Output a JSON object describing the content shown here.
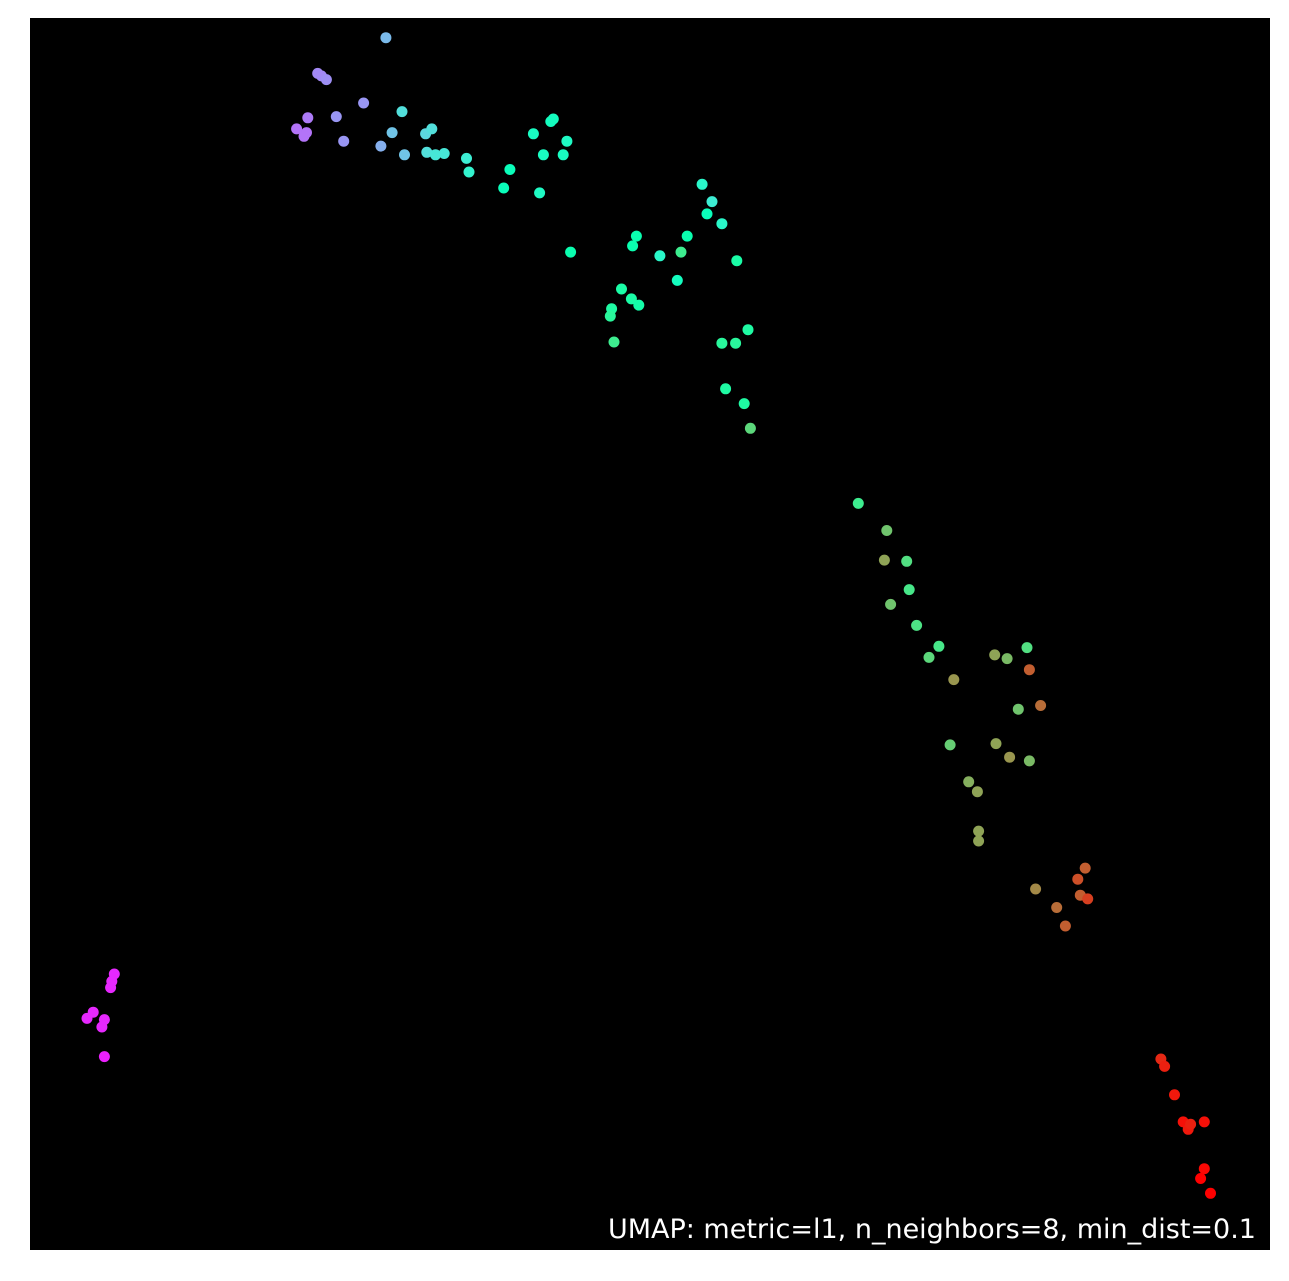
{
  "chart_data": {
    "type": "scatter",
    "title": "",
    "xlabel": "",
    "ylabel": "",
    "grid": false,
    "legend": "none",
    "annotation": "UMAP: metric=l1, n_neighbors=8, min_dist=0.1",
    "xlim": [
      0,
      100
    ],
    "ylim": [
      0,
      100
    ],
    "background_color": "#000000",
    "frame_color": "#000000",
    "text_color": "#ffffff",
    "colormap": "rainbow",
    "points": [
      {
        "x": 23.2,
        "y": 95.5,
        "c": 0.18
      },
      {
        "x": 23.5,
        "y": 95.3,
        "c": 0.18
      },
      {
        "x": 23.9,
        "y": 95.0,
        "c": 0.19
      },
      {
        "x": 21.5,
        "y": 91.0,
        "c": 0.15
      },
      {
        "x": 22.4,
        "y": 91.9,
        "c": 0.16
      },
      {
        "x": 22.3,
        "y": 90.7,
        "c": 0.15
      },
      {
        "x": 22.1,
        "y": 90.4,
        "c": 0.15
      },
      {
        "x": 24.7,
        "y": 92.0,
        "c": 0.2
      },
      {
        "x": 26.9,
        "y": 93.1,
        "c": 0.2
      },
      {
        "x": 25.3,
        "y": 90.0,
        "c": 0.2
      },
      {
        "x": 28.3,
        "y": 89.6,
        "c": 0.24
      },
      {
        "x": 29.2,
        "y": 90.7,
        "c": 0.28
      },
      {
        "x": 28.7,
        "y": 98.4,
        "c": 0.26
      },
      {
        "x": 30.0,
        "y": 92.4,
        "c": 0.34
      },
      {
        "x": 30.2,
        "y": 88.9,
        "c": 0.28
      },
      {
        "x": 31.9,
        "y": 90.6,
        "c": 0.32
      },
      {
        "x": 32.4,
        "y": 91.0,
        "c": 0.34
      },
      {
        "x": 32.0,
        "y": 89.1,
        "c": 0.34
      },
      {
        "x": 32.7,
        "y": 88.9,
        "c": 0.36
      },
      {
        "x": 33.4,
        "y": 89.0,
        "c": 0.36
      },
      {
        "x": 35.2,
        "y": 88.6,
        "c": 0.38
      },
      {
        "x": 35.4,
        "y": 87.5,
        "c": 0.4
      },
      {
        "x": 38.7,
        "y": 87.7,
        "c": 0.48
      },
      {
        "x": 38.2,
        "y": 86.2,
        "c": 0.48
      },
      {
        "x": 40.6,
        "y": 90.6,
        "c": 0.45
      },
      {
        "x": 41.1,
        "y": 85.8,
        "c": 0.44
      },
      {
        "x": 41.4,
        "y": 88.9,
        "c": 0.45
      },
      {
        "x": 42.0,
        "y": 91.6,
        "c": 0.46
      },
      {
        "x": 42.2,
        "y": 91.8,
        "c": 0.46
      },
      {
        "x": 43.0,
        "y": 88.9,
        "c": 0.45
      },
      {
        "x": 43.3,
        "y": 90.0,
        "c": 0.44
      },
      {
        "x": 54.2,
        "y": 86.5,
        "c": 0.42
      },
      {
        "x": 55.0,
        "y": 85.1,
        "c": 0.38
      },
      {
        "x": 54.6,
        "y": 84.1,
        "c": 0.48
      },
      {
        "x": 55.8,
        "y": 83.3,
        "c": 0.42
      },
      {
        "x": 43.6,
        "y": 81.0,
        "c": 0.52
      },
      {
        "x": 48.9,
        "y": 82.3,
        "c": 0.52
      },
      {
        "x": 48.6,
        "y": 81.5,
        "c": 0.52
      },
      {
        "x": 50.8,
        "y": 80.7,
        "c": 0.42
      },
      {
        "x": 52.5,
        "y": 81.0,
        "c": 0.62
      },
      {
        "x": 53.0,
        "y": 82.3,
        "c": 0.52
      },
      {
        "x": 57.0,
        "y": 80.3,
        "c": 0.55
      },
      {
        "x": 52.2,
        "y": 78.7,
        "c": 0.46
      },
      {
        "x": 47.7,
        "y": 78.0,
        "c": 0.55
      },
      {
        "x": 48.5,
        "y": 77.2,
        "c": 0.55
      },
      {
        "x": 49.1,
        "y": 76.7,
        "c": 0.54
      },
      {
        "x": 46.9,
        "y": 76.4,
        "c": 0.56
      },
      {
        "x": 46.8,
        "y": 75.8,
        "c": 0.58
      },
      {
        "x": 47.1,
        "y": 73.7,
        "c": 0.62
      },
      {
        "x": 55.8,
        "y": 73.6,
        "c": 0.58
      },
      {
        "x": 56.9,
        "y": 73.6,
        "c": 0.58
      },
      {
        "x": 57.9,
        "y": 74.7,
        "c": 0.56
      },
      {
        "x": 56.1,
        "y": 69.9,
        "c": 0.56
      },
      {
        "x": 57.6,
        "y": 68.7,
        "c": 0.56
      },
      {
        "x": 58.1,
        "y": 66.7,
        "c": 0.68
      },
      {
        "x": 66.8,
        "y": 60.6,
        "c": 0.62
      },
      {
        "x": 69.1,
        "y": 58.4,
        "c": 0.72
      },
      {
        "x": 68.9,
        "y": 56.0,
        "c": 0.78
      },
      {
        "x": 70.7,
        "y": 55.9,
        "c": 0.66
      },
      {
        "x": 70.9,
        "y": 53.6,
        "c": 0.64
      },
      {
        "x": 69.4,
        "y": 52.4,
        "c": 0.72
      },
      {
        "x": 71.5,
        "y": 50.7,
        "c": 0.65
      },
      {
        "x": 73.3,
        "y": 49.0,
        "c": 0.64
      },
      {
        "x": 72.5,
        "y": 48.1,
        "c": 0.68
      },
      {
        "x": 74.5,
        "y": 46.3,
        "c": 0.8
      },
      {
        "x": 77.8,
        "y": 48.3,
        "c": 0.78
      },
      {
        "x": 78.8,
        "y": 48.0,
        "c": 0.74
      },
      {
        "x": 80.4,
        "y": 48.9,
        "c": 0.66
      },
      {
        "x": 80.6,
        "y": 47.1,
        "c": 0.88
      },
      {
        "x": 81.5,
        "y": 44.2,
        "c": 0.86
      },
      {
        "x": 79.7,
        "y": 43.9,
        "c": 0.72
      },
      {
        "x": 74.2,
        "y": 41.0,
        "c": 0.7
      },
      {
        "x": 77.9,
        "y": 41.1,
        "c": 0.78
      },
      {
        "x": 79.0,
        "y": 40.0,
        "c": 0.8
      },
      {
        "x": 80.6,
        "y": 39.7,
        "c": 0.74
      },
      {
        "x": 75.7,
        "y": 38.0,
        "c": 0.76
      },
      {
        "x": 76.4,
        "y": 37.2,
        "c": 0.78
      },
      {
        "x": 76.5,
        "y": 34.0,
        "c": 0.78
      },
      {
        "x": 76.5,
        "y": 33.2,
        "c": 0.78
      },
      {
        "x": 85.1,
        "y": 31.0,
        "c": 0.88
      },
      {
        "x": 84.5,
        "y": 30.1,
        "c": 0.9
      },
      {
        "x": 81.1,
        "y": 29.3,
        "c": 0.82
      },
      {
        "x": 84.7,
        "y": 28.8,
        "c": 0.88
      },
      {
        "x": 85.3,
        "y": 28.5,
        "c": 0.92
      },
      {
        "x": 82.8,
        "y": 27.8,
        "c": 0.86
      },
      {
        "x": 83.5,
        "y": 26.3,
        "c": 0.88
      },
      {
        "x": 6.8,
        "y": 22.4,
        "c": 0.05
      },
      {
        "x": 6.6,
        "y": 21.8,
        "c": 0.05
      },
      {
        "x": 6.5,
        "y": 21.3,
        "c": 0.05
      },
      {
        "x": 5.1,
        "y": 19.3,
        "c": 0.05
      },
      {
        "x": 4.6,
        "y": 18.8,
        "c": 0.05
      },
      {
        "x": 6.0,
        "y": 18.7,
        "c": 0.05
      },
      {
        "x": 5.8,
        "y": 18.1,
        "c": 0.05
      },
      {
        "x": 6.0,
        "y": 15.7,
        "c": 0.04
      },
      {
        "x": 91.2,
        "y": 15.5,
        "c": 0.95
      },
      {
        "x": 91.5,
        "y": 14.9,
        "c": 0.96
      },
      {
        "x": 92.3,
        "y": 12.6,
        "c": 0.97
      },
      {
        "x": 93.0,
        "y": 10.4,
        "c": 0.98
      },
      {
        "x": 93.4,
        "y": 9.8,
        "c": 0.97
      },
      {
        "x": 93.6,
        "y": 10.2,
        "c": 0.96
      },
      {
        "x": 94.7,
        "y": 10.4,
        "c": 0.98
      },
      {
        "x": 94.7,
        "y": 6.6,
        "c": 0.99
      },
      {
        "x": 94.4,
        "y": 5.8,
        "c": 1.0
      },
      {
        "x": 95.2,
        "y": 4.6,
        "c": 1.0
      }
    ]
  }
}
